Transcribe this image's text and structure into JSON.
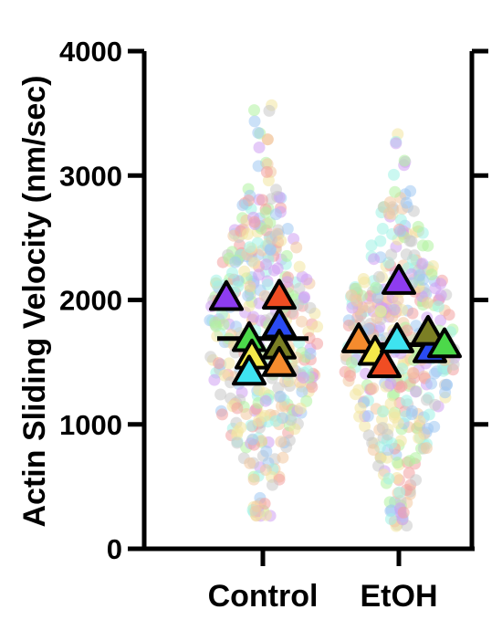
{
  "chart_data": {
    "type": "scatter",
    "subtype": "superplot",
    "title": "",
    "ylabel": "Actin Sliding Velocity (nm/sec)",
    "xlabel": "",
    "categories": [
      "Control",
      "EtOH"
    ],
    "ylim": [
      0,
      4000
    ],
    "yticks": [
      "0",
      "1000",
      "2000",
      "3000",
      "4000"
    ],
    "grid": false,
    "legend": "none",
    "individual_points_note": "semi-transparent colored dots (hundreds per group)",
    "individual_points_range": {
      "Control": [
        230,
        3630
      ],
      "EtOH": [
        160,
        3340
      ]
    },
    "group_mean_lines": [
      {
        "category": "Control",
        "value": 1690
      },
      {
        "category": "EtOH",
        "value": 1640
      }
    ],
    "replicate_means": [
      {
        "category": "Control",
        "color": "#8e3cf0",
        "value": 2020
      },
      {
        "category": "Control",
        "color": "#f04d23",
        "value": 2030
      },
      {
        "category": "Control",
        "color": "#2a4bf2",
        "value": 1800
      },
      {
        "category": "Control",
        "color": "#4cd94a",
        "value": 1690
      },
      {
        "category": "Control",
        "color": "#7b7f24",
        "value": 1630
      },
      {
        "category": "Control",
        "color": "#f5e94a",
        "value": 1550
      },
      {
        "category": "Control",
        "color": "#f58b2e",
        "value": 1490
      },
      {
        "category": "Control",
        "color": "#3ee3f0",
        "value": 1420
      },
      {
        "category": "EtOH",
        "color": "#8e3cf0",
        "value": 2150
      },
      {
        "category": "EtOH",
        "color": "#f58b2e",
        "value": 1680
      },
      {
        "category": "EtOH",
        "color": "#f5e94a",
        "value": 1580
      },
      {
        "category": "EtOH",
        "color": "#f04d23",
        "value": 1480
      },
      {
        "category": "EtOH",
        "color": "#3ee3f0",
        "value": 1680
      },
      {
        "category": "EtOH",
        "color": "#2a4bf2",
        "value": 1600
      },
      {
        "category": "EtOH",
        "color": "#7b7f24",
        "value": 1740
      },
      {
        "category": "EtOH",
        "color": "#4cd94a",
        "value": 1640
      }
    ],
    "point_colors": [
      "#f2a0a0",
      "#a0c8f2",
      "#b0f2a0",
      "#f2e6a0",
      "#d0a0f2",
      "#a0f2e6",
      "#f2c8a0",
      "#c8c8c8"
    ]
  }
}
